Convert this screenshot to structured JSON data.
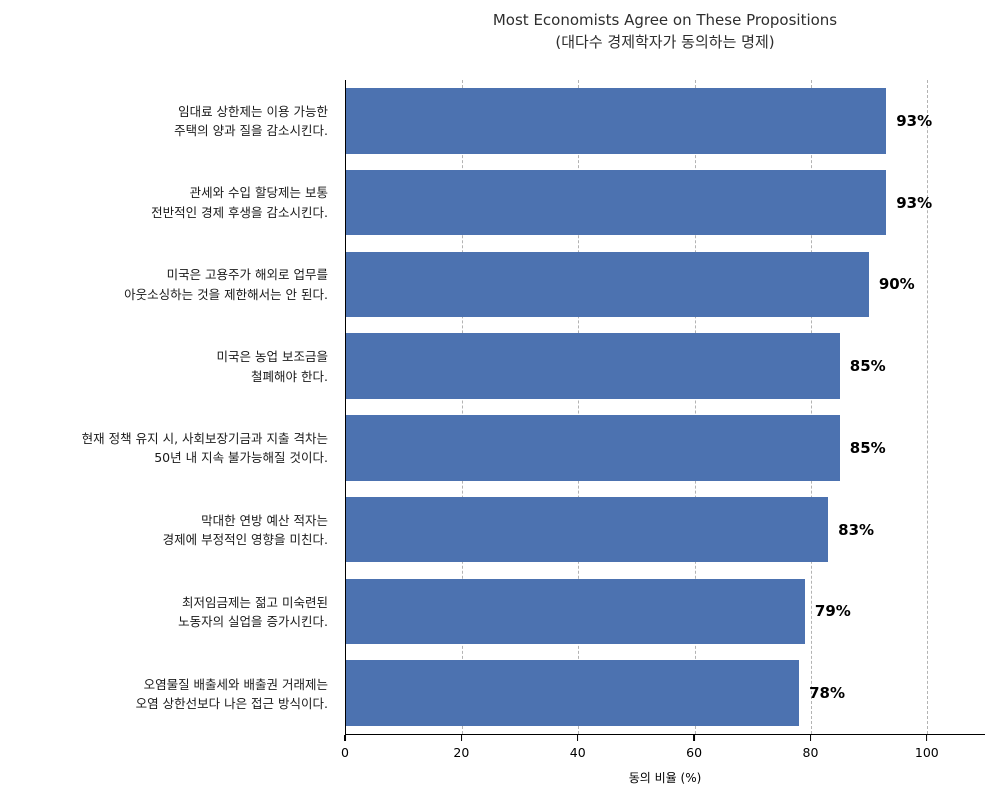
{
  "title": {
    "line1": "Most Economists Agree on These Propositions",
    "line2": "(대다수 경제학자가 동의하는 명제)"
  },
  "chart_data": {
    "type": "bar",
    "orientation": "horizontal",
    "title": "Most Economists Agree on These Propositions (대다수 경제학자가 동의하는 명제)",
    "categories": [
      "임대료 상한제는 이용 가능한\n주택의 양과 질을 감소시킨다.",
      "관세와 수입 할당제는 보통\n전반적인 경제 후생을 감소시킨다.",
      "미국은 고용주가 해외로 업무를\n아웃소싱하는 것을 제한해서는 안 된다.",
      "미국은 농업 보조금을\n철폐해야 한다.",
      "현재 정책 유지 시, 사회보장기금과 지출 격차는\n50년 내 지속 불가능해질 것이다.",
      "막대한 연방 예산 적자는\n경제에 부정적인 영향을 미친다.",
      "최저임금제는 젊고 미숙련된\n노동자의 실업을 증가시킨다.",
      "오염물질 배출세와 배출권 거래제는\n오염 상한선보다 나은 접근 방식이다."
    ],
    "values": [
      93,
      93,
      90,
      85,
      85,
      83,
      79,
      78
    ],
    "value_labels": [
      "93%",
      "93%",
      "90%",
      "85%",
      "85%",
      "83%",
      "79%",
      "78%"
    ],
    "xlabel": "동의 비율 (%)",
    "ylabel": "",
    "xlim": [
      0,
      110
    ],
    "xticks": [
      0,
      20,
      40,
      60,
      80,
      100
    ],
    "grid": "vertical-dashed",
    "legend": "none",
    "bar_color": "#4C72B0"
  }
}
